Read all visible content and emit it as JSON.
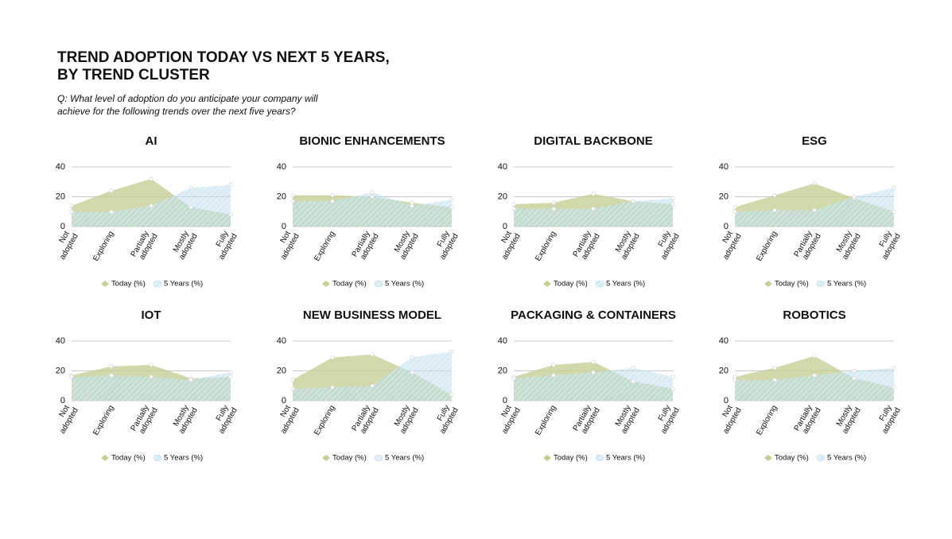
{
  "header": {
    "title_lines": [
      "TREND ADOPTION TODAY VS NEXT 5 YEARS,",
      "BY TREND CLUSTER"
    ],
    "question_lines": [
      "Q: What level of adoption do you anticipate your company will",
      "achieve for the following trends over the next five years?"
    ]
  },
  "chart_data": [
    {
      "type": "area",
      "title": "AI",
      "categories": [
        "Not adopted",
        "Exploring",
        "Partially adopted",
        "Mostly adopted",
        "Fully adopted"
      ],
      "series": [
        {
          "name": "Today (%)",
          "color": "#c5cf95",
          "values": [
            14,
            24,
            32,
            13,
            8
          ]
        },
        {
          "name": "5 Years (%)",
          "color": "#b9dcee",
          "values": [
            10,
            10,
            14,
            26,
            28
          ]
        }
      ],
      "ylim": [
        0,
        40
      ],
      "yticks": [
        0,
        20,
        40
      ],
      "grid": true
    },
    {
      "type": "area",
      "title": "BIONIC ENHANCEMENTS",
      "categories": [
        "Not adopted",
        "Exploring",
        "Partially adopted",
        "Mostly adopted",
        "Fully adopted"
      ],
      "series": [
        {
          "name": "Today (%)",
          "color": "#c5cf95",
          "values": [
            21,
            21,
            20,
            16,
            13
          ]
        },
        {
          "name": "5 Years (%)",
          "color": "#b9dcee",
          "values": [
            17,
            17,
            23,
            14,
            18
          ]
        }
      ],
      "ylim": [
        0,
        40
      ],
      "yticks": [
        0,
        20,
        40
      ],
      "grid": true
    },
    {
      "type": "area",
      "title": "DIGITAL BACKBONE",
      "categories": [
        "Not adopted",
        "Exploring",
        "Partially adopted",
        "Mostly adopted",
        "Fully adopted"
      ],
      "series": [
        {
          "name": "Today (%)",
          "color": "#c5cf95",
          "values": [
            15,
            16,
            22,
            17,
            15
          ]
        },
        {
          "name": "5 Years (%)",
          "color": "#b9dcee",
          "values": [
            12,
            12,
            12,
            17,
            19
          ]
        }
      ],
      "ylim": [
        0,
        40
      ],
      "yticks": [
        0,
        20,
        40
      ],
      "grid": true
    },
    {
      "type": "area",
      "title": "ESG",
      "categories": [
        "Not adopted",
        "Exploring",
        "Partially adopted",
        "Mostly adopted",
        "Fully adopted"
      ],
      "series": [
        {
          "name": "Today (%)",
          "color": "#c5cf95",
          "values": [
            13,
            21,
            29,
            19,
            10
          ]
        },
        {
          "name": "5 Years (%)",
          "color": "#b9dcee",
          "values": [
            10,
            11,
            11,
            20,
            26
          ]
        }
      ],
      "ylim": [
        0,
        40
      ],
      "yticks": [
        0,
        20,
        40
      ],
      "grid": true
    },
    {
      "type": "area",
      "title": "IOT",
      "categories": [
        "Not adopted",
        "Exploring",
        "Partially adopted",
        "Mostly adopted",
        "Fully adopted"
      ],
      "series": [
        {
          "name": "Today (%)",
          "color": "#c5cf95",
          "values": [
            17,
            23,
            24,
            15,
            16
          ]
        },
        {
          "name": "5 Years (%)",
          "color": "#b9dcee",
          "values": [
            16,
            17,
            16,
            14,
            19
          ]
        }
      ],
      "ylim": [
        0,
        40
      ],
      "yticks": [
        0,
        20,
        40
      ],
      "grid": true
    },
    {
      "type": "area",
      "title": "NEW BUSINESS MODEL",
      "categories": [
        "Not adopted",
        "Exploring",
        "Partially adopted",
        "Mostly adopted",
        "Fully adopted"
      ],
      "series": [
        {
          "name": "Today (%)",
          "color": "#c5cf95",
          "values": [
            14,
            29,
            31,
            19,
            4
          ]
        },
        {
          "name": "5 Years (%)",
          "color": "#b9dcee",
          "values": [
            8,
            9,
            10,
            29,
            33
          ]
        }
      ],
      "ylim": [
        0,
        40
      ],
      "yticks": [
        0,
        20,
        40
      ],
      "grid": true
    },
    {
      "type": "area",
      "title": "PACKAGING & CONTAINERS",
      "categories": [
        "Not adopted",
        "Exploring",
        "Partially adopted",
        "Mostly adopted",
        "Fully adopted"
      ],
      "series": [
        {
          "name": "Today (%)",
          "color": "#c5cf95",
          "values": [
            16,
            24,
            26,
            13,
            8
          ]
        },
        {
          "name": "5 Years (%)",
          "color": "#b9dcee",
          "values": [
            15,
            17,
            19,
            22,
            16
          ]
        }
      ],
      "ylim": [
        0,
        40
      ],
      "yticks": [
        0,
        20,
        40
      ],
      "grid": true
    },
    {
      "type": "area",
      "title": "ROBOTICS",
      "categories": [
        "Not adopted",
        "Exploring",
        "Partially adopted",
        "Mostly adopted",
        "Fully adopted"
      ],
      "series": [
        {
          "name": "Today (%)",
          "color": "#c5cf95",
          "values": [
            16,
            22,
            30,
            15,
            9
          ]
        },
        {
          "name": "5 Years (%)",
          "color": "#b9dcee",
          "values": [
            14,
            14,
            17,
            20,
            22
          ]
        }
      ],
      "ylim": [
        0,
        40
      ],
      "yticks": [
        0,
        20,
        40
      ],
      "grid": true
    }
  ]
}
